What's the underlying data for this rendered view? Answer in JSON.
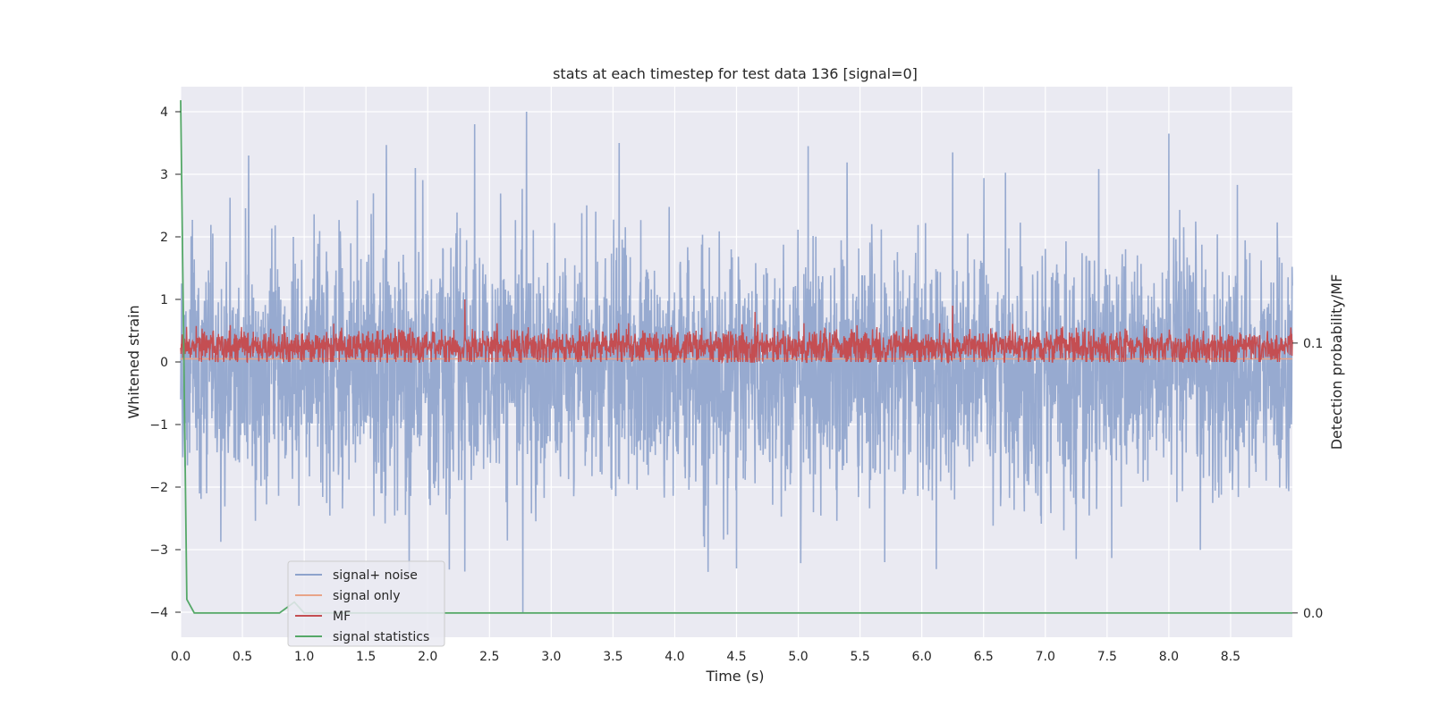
{
  "chart_data": {
    "type": "line",
    "title": "stats at each timestep for test data 136 [signal=0]",
    "xlabel": "Time (s)",
    "ylabel": "Whitened strain",
    "ylabel_right": "Detection probability/MF",
    "xlim": [
      0,
      9.0
    ],
    "ylim": [
      -4.4,
      4.4
    ],
    "ylim_right": [
      -0.009,
      0.195
    ],
    "x_ticks": [
      "0.0",
      "0.5",
      "1.0",
      "1.5",
      "2.0",
      "2.5",
      "3.0",
      "3.5",
      "4.0",
      "4.5",
      "5.0",
      "5.5",
      "6.0",
      "6.5",
      "7.0",
      "7.5",
      "8.0",
      "8.5"
    ],
    "y_ticks": [
      "4",
      "3",
      "2",
      "1",
      "0",
      "−1",
      "−2",
      "−3",
      "−4"
    ],
    "y_ticks_right": [
      "0.1",
      "0.0"
    ],
    "grid": true,
    "legend_position": "lower-left",
    "series": [
      {
        "name": "signal+ noise",
        "color": "#8ea3cc",
        "description": "dense white-noise strain, roughly within [-2.5, 2.5], peaks near 4.0 at t=2.8 and -4.0 at t=2.77",
        "peaks": [
          {
            "x": 0.55,
            "y": 3.3
          },
          {
            "x": 1.9,
            "y": 3.1
          },
          {
            "x": 2.38,
            "y": 3.8
          },
          {
            "x": 2.8,
            "y": 4.0
          },
          {
            "x": 3.55,
            "y": 3.5
          },
          {
            "x": 5.08,
            "y": 3.45
          },
          {
            "x": 6.25,
            "y": 3.35
          },
          {
            "x": 8.0,
            "y": 3.65
          },
          {
            "x": 1.85,
            "y": -3.4
          },
          {
            "x": 2.3,
            "y": -3.35
          },
          {
            "x": 2.77,
            "y": -4.0
          },
          {
            "x": 4.5,
            "y": -3.3
          },
          {
            "x": 5.7,
            "y": -3.2
          },
          {
            "x": 7.25,
            "y": -3.15
          }
        ]
      },
      {
        "name": "signal only",
        "color": "#e8a488",
        "values_constant": 0.05
      },
      {
        "name": "MF",
        "color": "#c44e52",
        "description": "matched-filter output, band roughly 0.0 to 0.6 on left axis, spike ~1.0 near t=2.3",
        "peaks": [
          {
            "x": 2.3,
            "y": 1.0
          },
          {
            "x": 4.65,
            "y": 0.8
          },
          {
            "x": 6.25,
            "y": 0.9
          }
        ]
      },
      {
        "name": "signal statistics",
        "color": "#55a868",
        "x": [
          0.0,
          0.05,
          0.11,
          0.8,
          0.92,
          1.0,
          1.1,
          9.0
        ],
        "y": [
          0.19,
          0.005,
          0.0,
          0.0,
          0.004,
          0.0,
          0.0,
          0.0
        ]
      }
    ]
  }
}
